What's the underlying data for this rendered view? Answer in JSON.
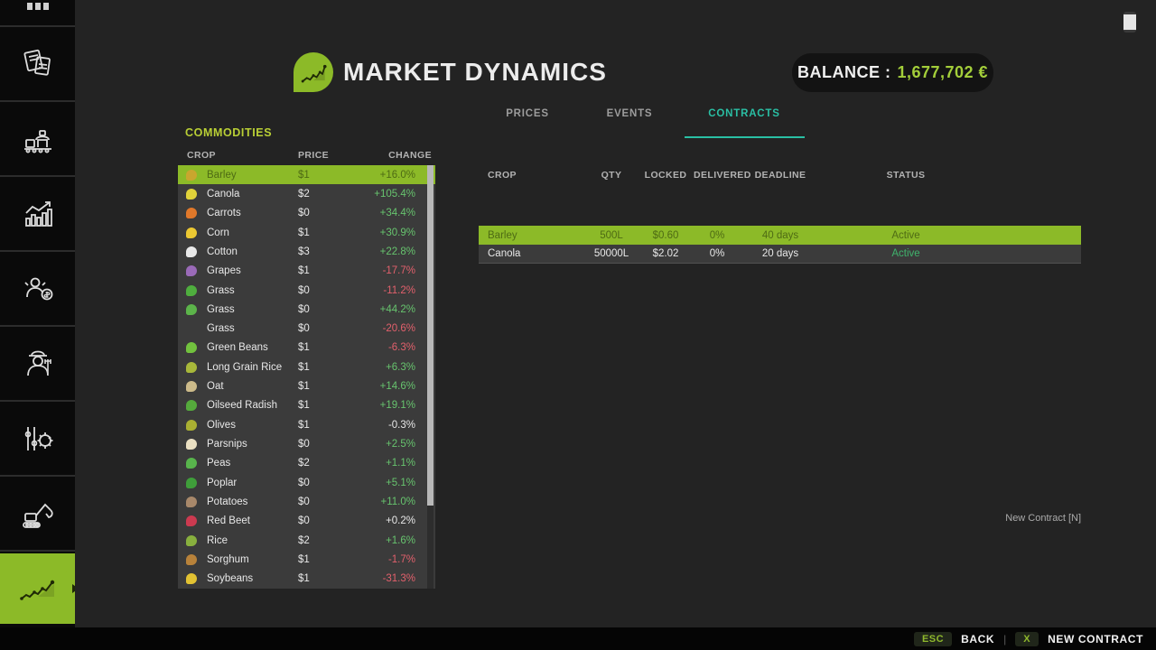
{
  "header": {
    "title": "MARKET DYNAMICS",
    "balance_label": "BALANCE :",
    "balance_value": "1,677,702 €"
  },
  "tabs": [
    {
      "label": "PRICES",
      "active": false
    },
    {
      "label": "EVENTS",
      "active": false
    },
    {
      "label": "CONTRACTS",
      "active": true
    }
  ],
  "commodities": {
    "section_title": "COMMODITIES",
    "columns": [
      "CROP",
      "PRICE",
      "CHANGE"
    ],
    "rows": [
      {
        "name": "Barley",
        "price": "$1",
        "change": "+16.0%",
        "dir": "up",
        "icon": "#c9a62e",
        "selected": true
      },
      {
        "name": "Canola",
        "price": "$2",
        "change": "+105.4%",
        "dir": "up",
        "icon": "#e0d23a",
        "selected": false
      },
      {
        "name": "Carrots",
        "price": "$0",
        "change": "+34.4%",
        "dir": "up",
        "icon": "#e0782a",
        "selected": false
      },
      {
        "name": "Corn",
        "price": "$1",
        "change": "+30.9%",
        "dir": "up",
        "icon": "#ecc832",
        "selected": false
      },
      {
        "name": "Cotton",
        "price": "$3",
        "change": "+22.8%",
        "dir": "up",
        "icon": "#e8e8e8",
        "selected": false
      },
      {
        "name": "Grapes",
        "price": "$1",
        "change": "-17.7%",
        "dir": "down",
        "icon": "#9a6ab8",
        "selected": false
      },
      {
        "name": "Grass",
        "price": "$0",
        "change": "-11.2%",
        "dir": "down",
        "icon": "#4fae3e",
        "selected": false
      },
      {
        "name": "Grass",
        "price": "$0",
        "change": "+44.2%",
        "dir": "up",
        "icon": "#5cb44a",
        "selected": false
      },
      {
        "name": "Grass",
        "price": "$0",
        "change": "-20.6%",
        "dir": "down",
        "icon": null,
        "selected": false
      },
      {
        "name": "Green Beans",
        "price": "$1",
        "change": "-6.3%",
        "dir": "down",
        "icon": "#72c23e",
        "selected": false
      },
      {
        "name": "Long Grain Rice",
        "price": "$1",
        "change": "+6.3%",
        "dir": "up",
        "icon": "#a8b83a",
        "selected": false
      },
      {
        "name": "Oat",
        "price": "$1",
        "change": "+14.6%",
        "dir": "up",
        "icon": "#cdbb8a",
        "selected": false
      },
      {
        "name": "Oilseed Radish",
        "price": "$1",
        "change": "+19.1%",
        "dir": "up",
        "icon": "#55aa3c",
        "selected": false
      },
      {
        "name": "Olives",
        "price": "$1",
        "change": "-0.3%",
        "dir": "flat",
        "icon": "#aab032",
        "selected": false
      },
      {
        "name": "Parsnips",
        "price": "$0",
        "change": "+2.5%",
        "dir": "up",
        "icon": "#eadfc2",
        "selected": false
      },
      {
        "name": "Peas",
        "price": "$2",
        "change": "+1.1%",
        "dir": "up",
        "icon": "#58b44c",
        "selected": false
      },
      {
        "name": "Poplar",
        "price": "$0",
        "change": "+5.1%",
        "dir": "up",
        "icon": "#3f9e3a",
        "selected": false
      },
      {
        "name": "Potatoes",
        "price": "$0",
        "change": "+11.0%",
        "dir": "up",
        "icon": "#a8886a",
        "selected": false
      },
      {
        "name": "Red Beet",
        "price": "$0",
        "change": "+0.2%",
        "dir": "flat",
        "icon": "#cc3a50",
        "selected": false
      },
      {
        "name": "Rice",
        "price": "$2",
        "change": "+1.6%",
        "dir": "up",
        "icon": "#88b03e",
        "selected": false
      },
      {
        "name": "Sorghum",
        "price": "$1",
        "change": "-1.7%",
        "dir": "down",
        "icon": "#b8823a",
        "selected": false
      },
      {
        "name": "Soybeans",
        "price": "$1",
        "change": "-31.3%",
        "dir": "down",
        "icon": "#e2c232",
        "selected": false
      }
    ]
  },
  "contracts": {
    "columns": [
      "CROP",
      "QTY",
      "LOCKED",
      "DELIVERED",
      "DEADLINE",
      "STATUS"
    ],
    "rows": [
      {
        "crop": "Barley",
        "qty": "500L",
        "locked": "$0.60",
        "delivered": "0%",
        "deadline": "40 days",
        "status": "Active",
        "highlighted": true
      },
      {
        "crop": "Canola",
        "qty": "50000L",
        "locked": "$2.02",
        "delivered": "0%",
        "deadline": "20 days",
        "status": "Active",
        "highlighted": false
      }
    ],
    "new_contract_hint": "New Contract [N]"
  },
  "footer": {
    "esc_key": "ESC",
    "back_label": "BACK",
    "separator": "|",
    "x_key": "X",
    "new_contract_label": "NEW CONTRACT"
  },
  "colors": {
    "accent_green": "#8cba28",
    "balance_green": "#a3ce3a",
    "tab_active_teal": "#2abfa4",
    "positive": "#67c46e",
    "negative": "#e2606c",
    "neutral": "#e8e8e8",
    "selected_row_text": "#4e6b14",
    "status_active": "#3fb36c",
    "commodities_title": "#b9cf35"
  }
}
